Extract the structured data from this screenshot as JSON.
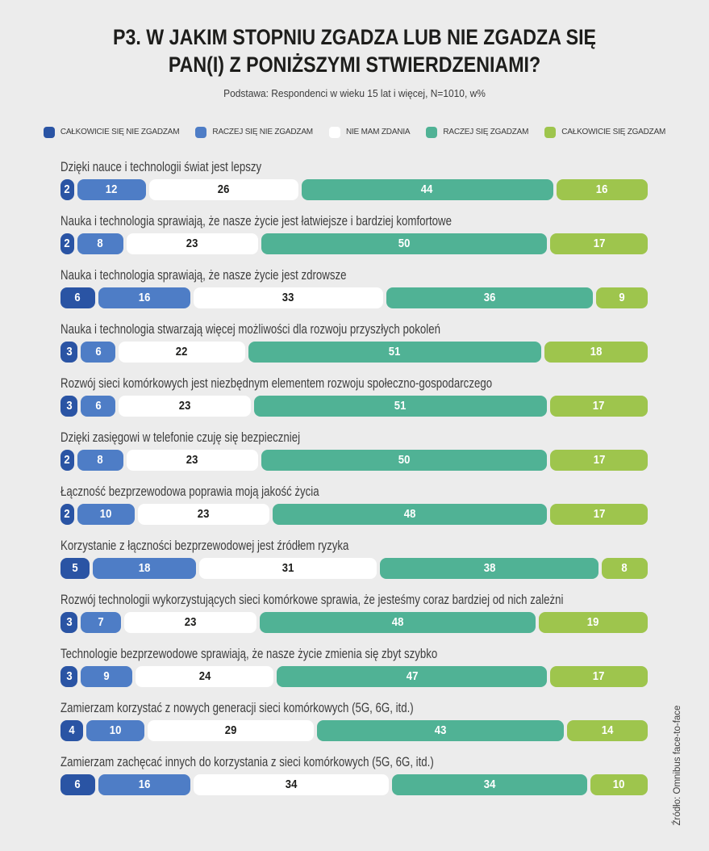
{
  "header": {
    "title_line1": "P3. W JAKIM STOPNIU ZGADZA LUB NIE ZGADZA SIĘ",
    "title_line2": "PAN(I) Z PONIŻSZYMI STWIERDZENIAMI?",
    "subtitle": "Podstawa: Respondenci w wieku 15 lat i więcej, N=1010, w%"
  },
  "source": "Źródło: Omnibus face-to-face",
  "colors": {
    "background": "#ececec",
    "title_text": "#1d1d1b",
    "label_text": "#3d3d3d",
    "segment_text_light": "#ffffff",
    "segment_text_dark": "#1d1d1b"
  },
  "legend": [
    {
      "label": "CAŁKOWICIE SIĘ NIE ZGADZAM",
      "color": "#2a54a4"
    },
    {
      "label": "RACZEJ SIĘ NIE ZGADZAM",
      "color": "#4e7dc6"
    },
    {
      "label": "NIE MAM ZDANIA",
      "color": "#ffffff"
    },
    {
      "label": "RACZEJ SIĘ ZGADZAM",
      "color": "#50b295"
    },
    {
      "label": "CAŁKOWICIE SIĘ ZGADZAM",
      "color": "#9ec54d"
    }
  ],
  "chart_data": {
    "type": "bar",
    "subtype": "horizontal-stacked",
    "unit": "w%",
    "stack_total": 100,
    "legend_position": "top",
    "series": [
      "CAŁKOWICIE SIĘ NIE ZGADZAM",
      "RACZEJ SIĘ NIE ZGADZAM",
      "NIE MAM ZDANIA",
      "RACZEJ SIĘ ZGADZAM",
      "CAŁKOWICIE SIĘ ZGADZAM"
    ],
    "categories": [
      "Dzięki nauce i technologii świat jest lepszy",
      "Nauka i technologia sprawiają, że nasze życie jest łatwiejsze i bardziej komfortowe",
      "Nauka i technologia sprawiają, że nasze życie jest zdrowsze",
      "Nauka i technologia stwarzają więcej możliwości dla rozwoju przyszłych pokoleń",
      "Rozwój sieci komórkowych jest niezbędnym elementem rozwoju społeczno-gospodarczego",
      "Dzięki zasięgowi w telefonie czuję się bezpieczniej",
      "Łączność bezprzewodowa poprawia moją jakość życia",
      "Korzystanie z łączności bezprzewodowej jest źródłem ryzyka",
      "Rozwój technologii wykorzystujących sieci komórkowe sprawia, że jesteśmy coraz bardziej od nich zależni",
      "Technologie bezprzewodowe sprawiają, że nasze życie zmienia się zbyt szybko",
      "Zamierzam korzystać z nowych generacji sieci komórkowych (5G, 6G, itd.)",
      "Zamierzam zachęcać innych do korzystania z sieci komórkowych (5G, 6G, itd.)"
    ],
    "rows": [
      {
        "label": "Dzięki nauce i technologii świat jest lepszy",
        "values": [
          2,
          12,
          26,
          44,
          16
        ]
      },
      {
        "label": "Nauka i technologia sprawiają, że nasze życie jest łatwiejsze i bardziej komfortowe",
        "values": [
          2,
          8,
          23,
          50,
          17
        ]
      },
      {
        "label": "Nauka i technologia sprawiają, że nasze życie jest zdrowsze",
        "values": [
          6,
          16,
          33,
          36,
          9
        ]
      },
      {
        "label": "Nauka i technologia stwarzają więcej możliwości dla rozwoju przyszłych pokoleń",
        "values": [
          3,
          6,
          22,
          51,
          18
        ]
      },
      {
        "label": "Rozwój sieci komórkowych jest niezbędnym elementem rozwoju społeczno-gospodarczego",
        "values": [
          3,
          6,
          23,
          51,
          17
        ]
      },
      {
        "label": "Dzięki zasięgowi w telefonie czuję się bezpieczniej",
        "values": [
          2,
          8,
          23,
          50,
          17
        ]
      },
      {
        "label": "Łączność bezprzewodowa poprawia moją jakość życia",
        "values": [
          2,
          10,
          23,
          48,
          17
        ]
      },
      {
        "label": "Korzystanie z łączności bezprzewodowej jest źródłem ryzyka",
        "values": [
          5,
          18,
          31,
          38,
          8
        ]
      },
      {
        "label": "Rozwój technologii wykorzystujących sieci komórkowe sprawia, że jesteśmy coraz bardziej od nich zależni",
        "values": [
          3,
          7,
          23,
          48,
          19
        ]
      },
      {
        "label": "Technologie bezprzewodowe sprawiają, że nasze życie zmienia się zbyt szybko",
        "values": [
          3,
          9,
          24,
          47,
          17
        ]
      },
      {
        "label": "Zamierzam korzystać z nowych generacji sieci komórkowych (5G, 6G, itd.)",
        "values": [
          4,
          10,
          29,
          43,
          14
        ]
      },
      {
        "label": "Zamierzam zachęcać innych do korzystania z sieci komórkowych (5G, 6G, itd.)",
        "values": [
          6,
          16,
          34,
          34,
          10
        ]
      }
    ]
  }
}
